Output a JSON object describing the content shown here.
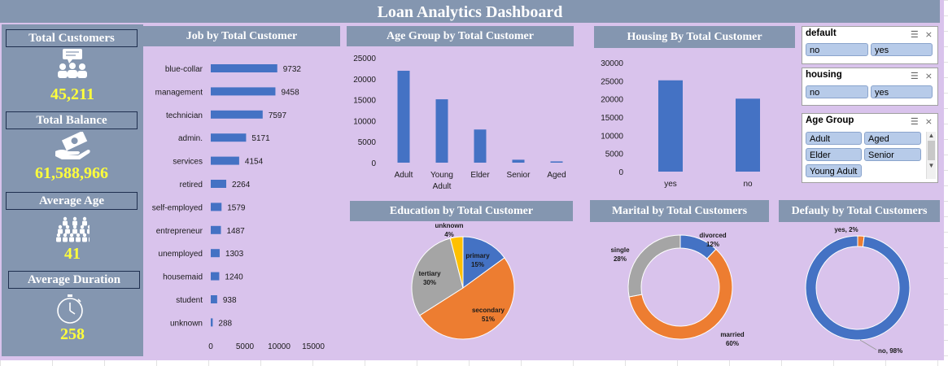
{
  "title": "Loan Analytics  Dashboard",
  "kpis": {
    "total_customers": {
      "label": "Total Customers",
      "value": "45,211",
      "icon": "people-chat-icon"
    },
    "total_balance": {
      "label": "Total Balance",
      "value": "61,588,966",
      "icon": "money-hand-icon"
    },
    "average_age": {
      "label": "Average Age",
      "value": "41",
      "icon": "crowd-icon"
    },
    "average_duration": {
      "label": "Average Duration",
      "value": "258",
      "icon": "stopwatch-icon"
    }
  },
  "panels": {
    "job": "Job by Total Customer",
    "age": "Age Group by Total Customer",
    "housing": "Housing By Total Customer",
    "education": "Education by Total Customer",
    "marital": "Marital by Total Customers",
    "default": "Defauly by Total Customers"
  },
  "slicers": {
    "default": {
      "title": "default",
      "items": [
        "no",
        "yes"
      ]
    },
    "housing": {
      "title": "housing",
      "items": [
        "no",
        "yes"
      ]
    },
    "age_group": {
      "title": "Age Group",
      "items": [
        "Adult",
        "Aged",
        "Elder",
        "Senior",
        "Young Adult"
      ]
    }
  },
  "colors": {
    "bar": "#4472c4",
    "orange": "#ed7d31",
    "gray": "#a5a5a5",
    "yellow": "#ffc000",
    "header": "#8496b0",
    "bg": "#d9c3ec",
    "kpi": "#ffff3b"
  },
  "chart_data": [
    {
      "id": "job",
      "type": "bar",
      "orientation": "horizontal",
      "categories": [
        "blue-collar",
        "management",
        "technician",
        "admin.",
        "services",
        "retired",
        "self-employed",
        "entrepreneur",
        "unemployed",
        "housemaid",
        "student",
        "unknown"
      ],
      "values": [
        9732,
        9458,
        7597,
        5171,
        4154,
        2264,
        1579,
        1487,
        1303,
        1240,
        938,
        288
      ],
      "xlim": [
        0,
        15000
      ],
      "xticks": [
        "0",
        "5000",
        "10000",
        "15000"
      ]
    },
    {
      "id": "age",
      "type": "bar",
      "categories": [
        "Adult",
        "Young Adult",
        "Elder",
        "Senior",
        "Aged"
      ],
      "category_lines": [
        [
          "Adult"
        ],
        [
          "Young",
          "Adult"
        ],
        [
          "Elder"
        ],
        [
          "Senior"
        ],
        [
          "Aged"
        ]
      ],
      "values": [
        21900,
        15100,
        7900,
        700,
        300
      ],
      "ylim": [
        0,
        25000
      ],
      "yticks": [
        "0",
        "5000",
        "10000",
        "15000",
        "20000",
        "25000"
      ]
    },
    {
      "id": "housing",
      "type": "bar",
      "categories": [
        "yes",
        "no"
      ],
      "values": [
        25130,
        20081
      ],
      "ylim": [
        0,
        30000
      ],
      "yticks": [
        "0",
        "5000",
        "10000",
        "15000",
        "20000",
        "25000",
        "30000"
      ]
    },
    {
      "id": "education",
      "type": "pie",
      "slices": [
        {
          "label": "primary",
          "pct": "15%",
          "value": 15
        },
        {
          "label": "secondary",
          "pct": "51%",
          "value": 51
        },
        {
          "label": "tertiary",
          "pct": "30%",
          "value": 30
        },
        {
          "label": "unknown",
          "pct": "4%",
          "value": 4
        }
      ]
    },
    {
      "id": "marital",
      "type": "pie",
      "donut": true,
      "slices": [
        {
          "label": "divorced",
          "pct": "12%",
          "value": 12
        },
        {
          "label": "married",
          "pct": "60%",
          "value": 60
        },
        {
          "label": "single",
          "pct": "28%",
          "value": 28
        }
      ]
    },
    {
      "id": "default",
      "type": "pie",
      "donut": true,
      "slices": [
        {
          "label": "yes",
          "pct": "2%",
          "value": 2,
          "text": "yes, 2%"
        },
        {
          "label": "no",
          "pct": "98%",
          "value": 98,
          "text": "no, 98%"
        }
      ]
    }
  ]
}
